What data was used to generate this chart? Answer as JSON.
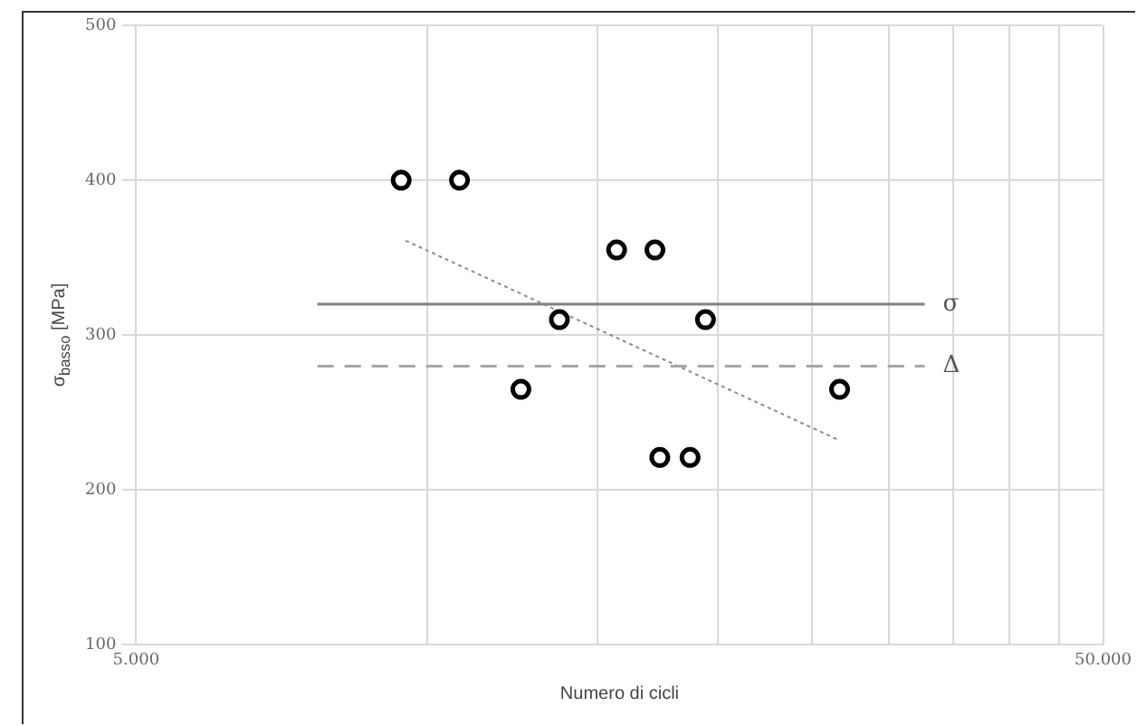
{
  "chart_data": {
    "type": "scatter",
    "xlabel": "Numero di cicli",
    "ylabel": "σ$_{basso}$ [MPa]",
    "log": "x",
    "grid": true,
    "legend": false,
    "xlim": [
      5000,
      50000
    ],
    "xticks": [
      {
        "value": 5000,
        "label": "5.000"
      },
      {
        "value": 10000,
        "label": null
      },
      {
        "value": 15000,
        "label": null
      },
      {
        "value": 20000,
        "label": null
      },
      {
        "value": 25000,
        "label": null
      },
      {
        "value": 30000,
        "label": null
      },
      {
        "value": 35000,
        "label": null
      },
      {
        "value": 40000,
        "label": null
      },
      {
        "value": 45000,
        "label": null
      },
      {
        "value": 50000,
        "label": "50.000"
      }
    ],
    "ylim": [
      100,
      500
    ],
    "yticks": [
      100,
      200,
      300,
      400,
      500
    ],
    "series": [
      {
        "type": "scatter",
        "marker": "circle",
        "color": "#000000",
        "x": [
          9400,
          10800,
          15700,
          17200,
          13700,
          19400,
          12500,
          26700,
          17400,
          18700
        ],
        "values": [
          400,
          400,
          355,
          355,
          310,
          310,
          265,
          265,
          221,
          221
        ]
      },
      {
        "type": "line",
        "marker": "none",
        "name": "σ",
        "color": "#808080",
        "line_style": "solid",
        "x": [
          7700,
          32700
        ],
        "values": [
          320,
          320
        ]
      },
      {
        "type": "line",
        "marker": "none",
        "name": "Δ",
        "color": "#a6a6a6",
        "line_style": "dashed",
        "x": [
          7700,
          32700
        ],
        "values": [
          280,
          280
        ]
      },
      {
        "type": "line",
        "marker": "none",
        "color": "#8c8c8c",
        "line_style": "dotted",
        "x": [
          9500,
          26700
        ],
        "values": [
          361,
          232
        ]
      }
    ]
  }
}
